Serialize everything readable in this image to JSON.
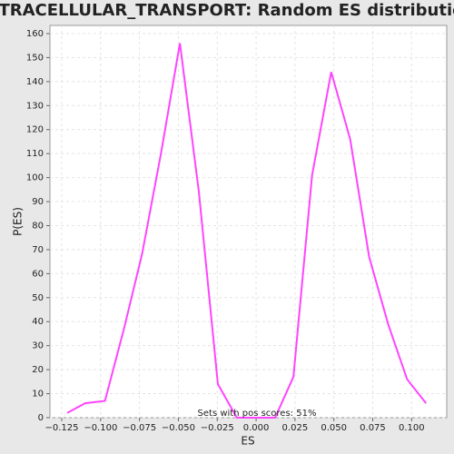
{
  "chart_data": {
    "type": "line",
    "title": "INTRACELLULAR_TRANSPORT: Random ES distribution",
    "x_label": "ES",
    "y_label": "P(ES)",
    "annotation": "Sets with pos scores: 51%",
    "grid": true,
    "series": [
      {
        "color": "#ff44ff",
        "x": [
          -0.1215,
          -0.11,
          -0.0972,
          -0.085,
          -0.0734,
          -0.0612,
          -0.049,
          -0.0368,
          -0.0246,
          -0.0124,
          0.0,
          0.0122,
          0.024,
          0.036,
          0.0483,
          0.0605,
          0.0727,
          0.0849,
          0.0971,
          0.1093
        ],
        "values": [
          2,
          6,
          7,
          37,
          68,
          110,
          156,
          94,
          14,
          0,
          0,
          0,
          17,
          101,
          144,
          116,
          67,
          39,
          16,
          6
        ]
      }
    ],
    "xlim": [
      -0.1326,
      0.1226
    ],
    "ylim": [
      0,
      163.4
    ],
    "xticks": [
      {
        "value": -0.125,
        "label": "−0.125"
      },
      {
        "value": -0.1,
        "label": "−0.100"
      },
      {
        "value": -0.075,
        "label": "−0.075"
      },
      {
        "value": -0.05,
        "label": "−0.050"
      },
      {
        "value": -0.025,
        "label": "−0.025"
      },
      {
        "value": 0,
        "label": "0.000"
      },
      {
        "value": 0.025,
        "label": "0.025"
      },
      {
        "value": 0.05,
        "label": "0.050"
      },
      {
        "value": 0.075,
        "label": "0.075"
      },
      {
        "value": 0.1,
        "label": "0.100"
      }
    ],
    "yticks": [
      0,
      10,
      20,
      30,
      40,
      50,
      60,
      70,
      80,
      90,
      100,
      110,
      120,
      130,
      140,
      150,
      160
    ]
  }
}
